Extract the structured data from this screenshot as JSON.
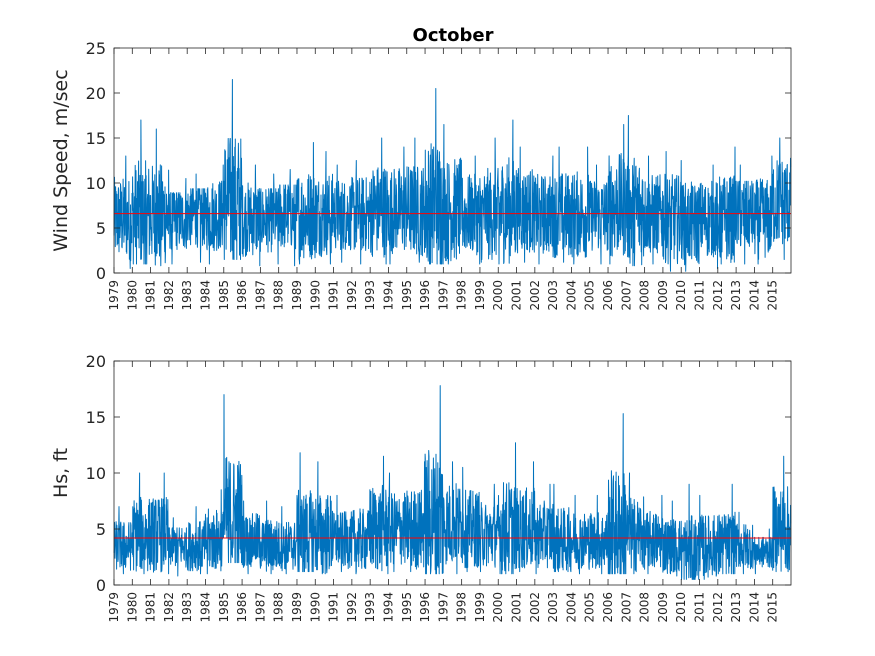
{
  "chart_data": [
    {
      "type": "line",
      "title": "October",
      "ylabel": "Wind Speed, m/sec",
      "xlabel": "",
      "xlim": [
        1979,
        2016
      ],
      "ylim": [
        0,
        25
      ],
      "yticks": [
        0,
        5,
        10,
        15,
        20,
        25
      ],
      "xticks": [
        "1979",
        "1980",
        "1981",
        "1982",
        "1983",
        "1984",
        "1985",
        "1986",
        "1987",
        "1988",
        "1989",
        "1990",
        "1991",
        "1992",
        "1993",
        "1994",
        "1995",
        "1996",
        "1997",
        "1998",
        "1999",
        "2000",
        "2001",
        "2002",
        "2003",
        "2004",
        "2005",
        "2006",
        "2007",
        "2008",
        "2009",
        "2010",
        "2011",
        "2012",
        "2013",
        "2014",
        "2015"
      ],
      "series": [
        {
          "color": "#0072bd",
          "note_values": "approximate per-year October range (min, mean, max) read from plot",
          "years": [
            1979,
            1980,
            1981,
            1982,
            1983,
            1984,
            1985,
            1986,
            1987,
            1988,
            1989,
            1990,
            1991,
            1992,
            1993,
            1994,
            1995,
            1996,
            1997,
            1998,
            1999,
            2000,
            2001,
            2002,
            2003,
            2004,
            2005,
            2006,
            2007,
            2008,
            2009,
            2010,
            2011,
            2012,
            2013,
            2014,
            2015
          ],
          "min": [
            0.5,
            1.0,
            0.8,
            1.0,
            1.2,
            1.0,
            1.5,
            0.8,
            1.0,
            0.8,
            1.0,
            1.0,
            1.2,
            1.0,
            1.0,
            1.0,
            1.2,
            1.0,
            1.0,
            1.0,
            1.2,
            1.0,
            1.2,
            1.0,
            1.2,
            1.0,
            1.0,
            1.0,
            0.8,
            1.0,
            0.2,
            0.2,
            0.5,
            1.0,
            1.0,
            1.0,
            1.5
          ],
          "mean": [
            6.0,
            6.5,
            6.5,
            6.0,
            6.5,
            6.5,
            8.0,
            6.0,
            6.0,
            6.5,
            6.5,
            6.5,
            6.5,
            6.5,
            7.0,
            7.0,
            7.0,
            7.5,
            7.0,
            6.5,
            6.5,
            7.0,
            7.0,
            6.5,
            6.5,
            6.5,
            6.5,
            7.5,
            7.0,
            6.5,
            6.0,
            5.5,
            6.0,
            6.0,
            6.5,
            6.0,
            8.0
          ],
          "max": [
            13.0,
            17.0,
            16.0,
            10.5,
            11.0,
            12.0,
            21.5,
            12.0,
            11.0,
            11.5,
            14.5,
            13.5,
            12.0,
            12.5,
            15.0,
            14.0,
            15.0,
            20.5,
            16.5,
            13.0,
            15.0,
            17.0,
            14.0,
            13.0,
            14.0,
            14.0,
            12.0,
            16.5,
            17.5,
            13.0,
            13.5,
            12.5,
            12.0,
            14.0,
            12.0,
            13.0,
            15.0
          ]
        },
        {
          "color": "#ff0000",
          "note_values": "horizontal mean line",
          "y": 6.6
        }
      ]
    },
    {
      "type": "line",
      "title": "",
      "ylabel": "Hs, ft",
      "xlabel": "",
      "xlim": [
        1979,
        2016
      ],
      "ylim": [
        0,
        20
      ],
      "yticks": [
        0,
        5,
        10,
        15,
        20
      ],
      "xticks": [
        "1979",
        "1980",
        "1981",
        "1982",
        "1983",
        "1984",
        "1985",
        "1986",
        "1987",
        "1988",
        "1989",
        "1990",
        "1991",
        "1992",
        "1993",
        "1994",
        "1995",
        "1996",
        "1997",
        "1998",
        "1999",
        "2000",
        "2001",
        "2002",
        "2003",
        "2004",
        "2005",
        "2006",
        "2007",
        "2008",
        "2009",
        "2010",
        "2011",
        "2012",
        "2013",
        "2014",
        "2015"
      ],
      "series": [
        {
          "color": "#0072bd",
          "note_values": "approximate per-year October range (min, mean, max) read from plot",
          "years": [
            1979,
            1980,
            1981,
            1982,
            1983,
            1984,
            1985,
            1986,
            1987,
            1988,
            1989,
            1990,
            1991,
            1992,
            1993,
            1994,
            1995,
            1996,
            1997,
            1998,
            1999,
            2000,
            2001,
            2002,
            2003,
            2004,
            2005,
            2006,
            2007,
            2008,
            2009,
            2010,
            2011,
            2012,
            2013,
            2014,
            2015
          ],
          "min": [
            1.0,
            1.0,
            1.0,
            0.8,
            1.0,
            1.0,
            2.0,
            1.0,
            1.0,
            1.0,
            1.2,
            1.0,
            1.2,
            1.0,
            1.0,
            1.2,
            1.2,
            1.0,
            1.0,
            1.2,
            1.2,
            1.0,
            1.2,
            1.0,
            1.2,
            1.0,
            1.0,
            1.0,
            1.0,
            1.0,
            0.8,
            0.5,
            0.5,
            1.0,
            1.0,
            1.0,
            1.2
          ],
          "mean": [
            3.5,
            4.5,
            4.5,
            3.5,
            3.5,
            4.0,
            6.0,
            4.0,
            3.5,
            3.5,
            4.5,
            4.5,
            4.0,
            4.0,
            5.0,
            5.0,
            5.0,
            6.0,
            5.5,
            5.0,
            4.5,
            5.0,
            5.0,
            4.5,
            4.0,
            4.0,
            4.0,
            5.0,
            4.5,
            4.0,
            3.5,
            3.0,
            3.5,
            3.5,
            3.5,
            3.0,
            5.0
          ],
          "max": [
            7.0,
            10.0,
            10.0,
            6.0,
            7.0,
            8.5,
            17.0,
            7.5,
            7.5,
            7.0,
            11.8,
            11.0,
            8.0,
            8.5,
            11.5,
            10.0,
            11.0,
            17.8,
            11.0,
            10.5,
            9.0,
            12.7,
            11.0,
            9.0,
            9.0,
            8.0,
            8.0,
            15.3,
            10.0,
            8.0,
            7.5,
            9.0,
            8.0,
            9.0,
            6.5,
            5.0,
            11.5
          ]
        },
        {
          "color": "#ff0000",
          "note_values": "horizontal mean line",
          "y": 4.2
        }
      ]
    }
  ]
}
